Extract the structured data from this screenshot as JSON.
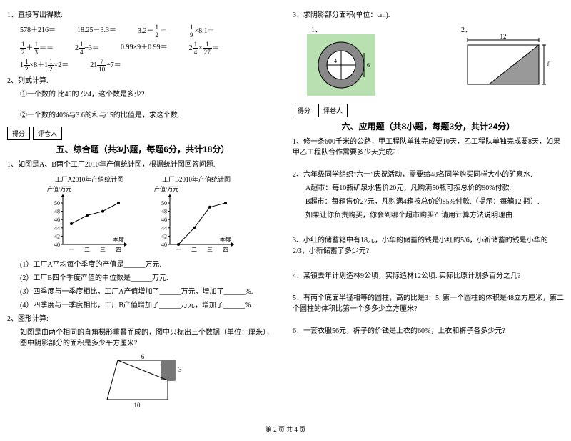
{
  "left": {
    "q1_label": "1、直接写出得数:",
    "q1_eq": [
      "578＋216＝",
      "18.25－3.3＝",
      "3.2－",
      "＝",
      "",
      "×8.1＝",
      "",
      "＋",
      "＝",
      "2",
      "÷3＝",
      "0.99×9＋0.99＝",
      "2",
      "×",
      "＝",
      "1",
      "×8＋1",
      "×2＝",
      "21",
      "÷7＝"
    ],
    "frac12n": "1",
    "frac12d": "2",
    "frac19n": "1",
    "frac19d": "9",
    "frac13n": "1",
    "frac13d": "3",
    "frac14n": "1",
    "frac14d": "4",
    "frac127n": "1",
    "frac127d": "27",
    "frac710n": "7",
    "frac710d": "10",
    "q2_label": "2、列式计算.",
    "q2_1": "①一个数的 比49的 少4，这个数是多少?",
    "q2_2": "②一个数的40%与3.6的和与15的比值是，求这个数.",
    "score_l1": "得分",
    "score_l2": "评卷人",
    "sec5": "五、综合题（共3小题，每题6分，共计18分）",
    "c1_label": "1、如图是A、B两个工厂2010年产值统计图，根据统计图回答问题.",
    "chartA_title": "工厂A2010年产值统计图",
    "chartB_title": "工厂B2010年产值统计图",
    "chart_ylabel": "产值/万元",
    "chart_xlabel": "季度",
    "chart_yticks": [
      "50",
      "48",
      "46",
      "44",
      "42",
      "40"
    ],
    "chart_xticks": [
      "一",
      "二",
      "三",
      "四"
    ],
    "chartA_data": [
      45,
      47,
      48,
      50
    ],
    "chartB_data": [
      40,
      44,
      49,
      50
    ],
    "c1_sub1": "(1）工厂A平均每个季度的产值是______万元.",
    "c1_sub2": "(2）工厂B四个季度产值的中位数是______万元.",
    "c1_sub3": "(3）四季度与一季度相比，工厂A产值增加了______万元，增加了______%.",
    "c1_sub4": "(4）四季度与一季度相比，工厂B产值增加了______万元，增加了______%.",
    "c2_label": "2、图形计算:",
    "c2_text": "如图是由两个相同的直角梯形重叠而成的，图中只标出三个数据（单位：厘米），图中阴影部分的面积是多少平方厘米?",
    "trap_top": "6",
    "trap_side": "3",
    "trap_bot": "10"
  },
  "right": {
    "q3_label": "3、求阴影部分面积(单位：cm).",
    "fig1_label": "1、",
    "fig2_label": "2、",
    "circ_d": "4",
    "rect_w": "12",
    "rect_h": "8",
    "score_l1": "得分",
    "score_l2": "评卷人",
    "sec6": "六、应用题（共8小题，每题3分，共计24分）",
    "a1": "1、修一条600千米的公路，甲工程队单独完成要10天，乙工程队单独完成要8天，如果甲乙工程队合作需要多少天完成?",
    "a2_head": "2、六年级同学组织\"六一\"庆祝活动，需要给48名同学购买同样大小的矿泉水.",
    "a2_l1": "A超市：每10瓶矿泉水售价20元，凡购满50瓶可按总价的90%付款.",
    "a2_l2": "B超市：每箱售价27元，凡购满4箱按总价的85%付款.（提示：每箱12 瓶）.",
    "a2_l3": "如果让你负责购买，你会到哪个超市购买？请用计算方法说明理由.",
    "a3": "3、小红的储蓄箱中有18元，小华的储蓄的钱是小红的5/6，小新储蓄的钱是小华的2/3，小新储蓄了多少元?",
    "a4": "4、某镇去年计划造林9公顷，实际造林12公顷. 实际比原计划多百分之几?",
    "a5": "5、有两个底面半径相等的圆柱，高的比是3：5. 第一个圆柱的体积是48立方厘米，第二个圆柱的体积比第一个多多少立方厘米?",
    "a6": "6、一套衣服56元，裤子的价钱是上衣的60%，上衣和裤子各多少元?"
  },
  "foot": "第 2 页 共 4 页",
  "chart_style": {
    "axis_color": "#000",
    "line_color": "#000",
    "marker": "circle",
    "marker_r": 2,
    "grid": false,
    "width": 120,
    "height": 90,
    "ymin": 40,
    "ymax": 50
  }
}
